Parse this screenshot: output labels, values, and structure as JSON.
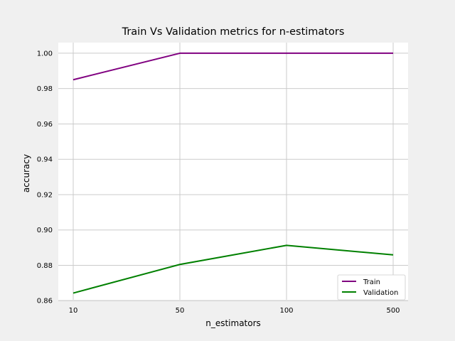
{
  "chart_data": {
    "type": "line",
    "title": "Train Vs Validation metrics for n-estimators",
    "xlabel": "n_estimators",
    "ylabel": "accuracy",
    "categories": [
      "10",
      "50",
      "100",
      "500"
    ],
    "ylim": [
      0.8605,
      1.006
    ],
    "yticks": [
      "0.86",
      "0.88",
      "0.90",
      "0.92",
      "0.94",
      "0.96",
      "0.98",
      "1.00"
    ],
    "grid": true,
    "legend_position": "lower-right",
    "series": [
      {
        "name": "Train",
        "color": "#800080",
        "values": [
          0.985,
          1.0,
          1.0,
          1.0
        ]
      },
      {
        "name": "Validation",
        "color": "#008000",
        "values": [
          0.8643,
          0.8805,
          0.8913,
          0.8859
        ]
      }
    ]
  }
}
